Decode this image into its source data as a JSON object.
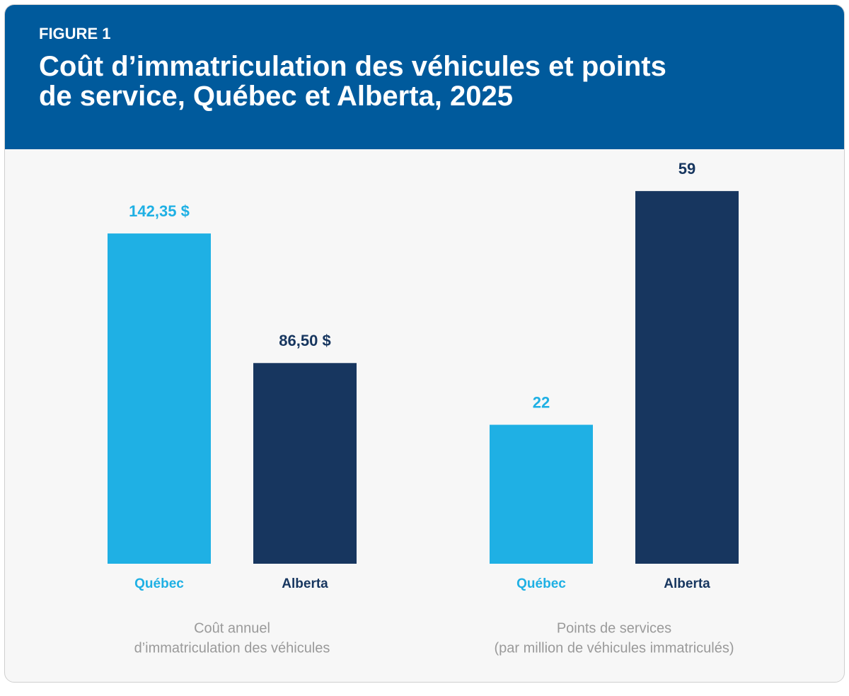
{
  "figure": {
    "label": "FIGURE 1",
    "title": [
      "Coût d’immatriculation des véhicules et points",
      "de service, Québec et Alberta, 2025"
    ]
  },
  "chart_data": [
    {
      "type": "bar",
      "categories": [
        "Québec",
        "Alberta"
      ],
      "values": [
        142.35,
        86.5
      ],
      "value_labels": [
        "142,35 $",
        "86,50 $"
      ],
      "colors": [
        "#1fb0e4",
        "#17365f"
      ],
      "xlabel": [
        "Coût annuel",
        "d’immatriculation des véhicules"
      ]
    },
    {
      "type": "bar",
      "categories": [
        "Québec",
        "Alberta"
      ],
      "values": [
        22,
        59
      ],
      "colors": [
        "#1fb0e4",
        "#17365f"
      ],
      "xlabel": [
        "Points de services",
        "(par million de véhicules immatriculés)"
      ]
    }
  ]
}
